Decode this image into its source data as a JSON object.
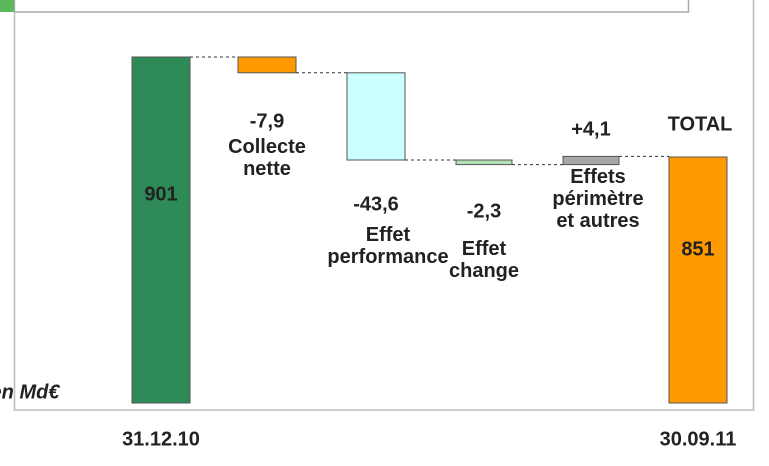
{
  "chart_data": {
    "type": "waterfall",
    "categories": [
      "31.12.10",
      "Collecte\nnette",
      "Effet\nperformance",
      "Effet\nchange",
      "Effets\npérimètre\net autres",
      "30.09.11"
    ],
    "values": [
      901,
      -7.9,
      -43.6,
      -2.3,
      4.1,
      851
    ],
    "value_labels": [
      "901",
      "-7,9",
      "-43,6",
      "-2,3",
      "+4,1",
      "851"
    ],
    "measure": [
      "total",
      "relative",
      "relative",
      "relative",
      "relative",
      "total"
    ],
    "colors": [
      "#2e8b57",
      "#ff9900",
      "#ccffff",
      "#b5dfb5",
      "#a6a6a6",
      "#ff9900"
    ],
    "ylim": [
      728,
      901
    ],
    "annotations": [
      "TOTAL",
      "en Md€"
    ]
  }
}
